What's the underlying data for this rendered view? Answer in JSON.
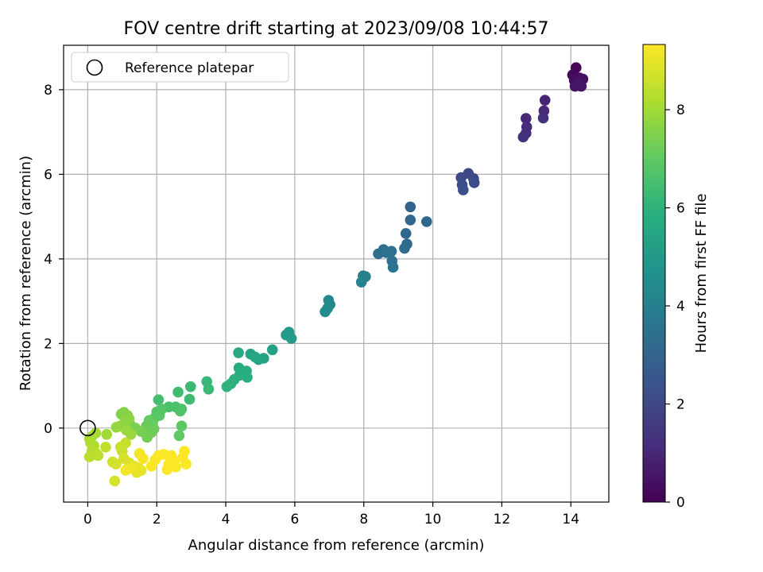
{
  "chart_data": {
    "type": "scatter",
    "title": "FOV centre drift starting at 2023/09/08 10:44:57",
    "xlabel": "Angular distance from reference (arcmin)",
    "ylabel": "Rotation from reference (arcmin)",
    "xlim": [
      -0.7,
      15.1
    ],
    "ylim": [
      -1.75,
      9.05
    ],
    "xticks": [
      0,
      2,
      4,
      6,
      8,
      10,
      12,
      14
    ],
    "yticks": [
      0,
      2,
      4,
      6,
      8
    ],
    "grid": true,
    "legend": {
      "placement": "upper-left",
      "entries": [
        "Reference platepar"
      ]
    },
    "colorbar": {
      "label": "Hours from first FF file",
      "range": [
        0,
        9.33
      ],
      "ticks": [
        0,
        2,
        4,
        6,
        8
      ],
      "colormap": "viridis"
    },
    "reference": {
      "x": 0,
      "y": 0,
      "label": "Reference platepar"
    },
    "points": [
      [
        14.15,
        8.52,
        0.1
      ],
      [
        14.05,
        8.35,
        0.2
      ],
      [
        14.25,
        8.28,
        0.3
      ],
      [
        14.1,
        8.22,
        0.35
      ],
      [
        14.35,
        8.25,
        0.4
      ],
      [
        14.12,
        8.08,
        0.45
      ],
      [
        14.3,
        8.08,
        0.5
      ],
      [
        14.2,
        8.15,
        0.55
      ],
      [
        13.25,
        7.75,
        1.0
      ],
      [
        12.7,
        7.32,
        1.05
      ],
      [
        13.22,
        7.5,
        1.1
      ],
      [
        12.72,
        7.12,
        1.15
      ],
      [
        12.7,
        6.97,
        1.2
      ],
      [
        13.2,
        7.33,
        1.25
      ],
      [
        12.62,
        6.88,
        1.3
      ],
      [
        11.03,
        6.02,
        2.0
      ],
      [
        10.82,
        5.92,
        2.05
      ],
      [
        11.18,
        5.9,
        2.1
      ],
      [
        11.2,
        5.8,
        2.15
      ],
      [
        10.85,
        5.75,
        2.2
      ],
      [
        10.88,
        5.63,
        2.25
      ],
      [
        9.35,
        5.23,
        3.0
      ],
      [
        9.35,
        4.92,
        3.05
      ],
      [
        9.82,
        4.88,
        3.1
      ],
      [
        9.22,
        4.6,
        3.15
      ],
      [
        9.25,
        4.35,
        3.2
      ],
      [
        9.18,
        4.25,
        3.25
      ],
      [
        8.57,
        4.22,
        3.3
      ],
      [
        8.42,
        4.12,
        3.35
      ],
      [
        8.8,
        4.18,
        3.4
      ],
      [
        8.65,
        4.15,
        3.45
      ],
      [
        8.82,
        3.95,
        3.5
      ],
      [
        8.85,
        3.8,
        3.55
      ],
      [
        7.98,
        3.6,
        4.0
      ],
      [
        8.05,
        3.58,
        4.05
      ],
      [
        7.93,
        3.45,
        4.1
      ],
      [
        6.98,
        3.02,
        4.3
      ],
      [
        7.02,
        2.92,
        4.35
      ],
      [
        6.95,
        2.83,
        4.4
      ],
      [
        6.88,
        2.75,
        4.45
      ],
      [
        5.83,
        2.27,
        5.0
      ],
      [
        5.75,
        2.2,
        5.05
      ],
      [
        5.9,
        2.12,
        5.1
      ],
      [
        5.35,
        1.85,
        5.3
      ],
      [
        5.1,
        1.65,
        5.35
      ],
      [
        4.95,
        1.62,
        5.4
      ],
      [
        4.72,
        1.75,
        5.45
      ],
      [
        4.85,
        1.68,
        5.5
      ],
      [
        4.37,
        1.78,
        5.6
      ],
      [
        4.38,
        1.42,
        5.7
      ],
      [
        4.6,
        1.35,
        5.75
      ],
      [
        4.4,
        1.25,
        5.8
      ],
      [
        4.62,
        1.2,
        5.85
      ],
      [
        4.25,
        1.15,
        5.9
      ],
      [
        4.15,
        1.05,
        5.95
      ],
      [
        4.03,
        0.98,
        6.0
      ],
      [
        3.45,
        1.1,
        6.2
      ],
      [
        3.5,
        0.92,
        6.25
      ],
      [
        2.98,
        0.98,
        6.3
      ],
      [
        2.95,
        0.68,
        6.35
      ],
      [
        2.62,
        0.85,
        6.4
      ],
      [
        2.05,
        0.67,
        6.5
      ],
      [
        2.35,
        0.5,
        6.55
      ],
      [
        2.55,
        0.5,
        6.6
      ],
      [
        2.72,
        0.45,
        6.65
      ],
      [
        2.68,
        0.4,
        6.7
      ],
      [
        2.15,
        0.45,
        6.75
      ],
      [
        2.0,
        0.38,
        6.8
      ],
      [
        2.08,
        0.3,
        6.85
      ],
      [
        1.95,
        0.25,
        6.9
      ],
      [
        2.72,
        0.05,
        6.95
      ],
      [
        2.65,
        -0.18,
        7.0
      ],
      [
        1.78,
        0.18,
        7.05
      ],
      [
        1.88,
        0.12,
        7.1
      ],
      [
        1.7,
        0.05,
        7.15
      ],
      [
        1.92,
        -0.02,
        7.2
      ],
      [
        1.85,
        -0.1,
        7.25
      ],
      [
        1.72,
        -0.22,
        7.3
      ],
      [
        1.55,
        -0.08,
        7.35
      ],
      [
        1.38,
        0.0,
        7.4
      ],
      [
        1.22,
        0.1,
        7.45
      ],
      [
        0.97,
        0.33,
        7.5
      ],
      [
        1.05,
        0.37,
        7.55
      ],
      [
        1.15,
        0.3,
        7.6
      ],
      [
        1.2,
        0.22,
        7.65
      ],
      [
        1.08,
        0.15,
        7.7
      ],
      [
        0.95,
        0.05,
        7.75
      ],
      [
        0.83,
        0.02,
        7.8
      ],
      [
        1.12,
        -0.05,
        7.85
      ],
      [
        1.25,
        -0.15,
        7.9
      ],
      [
        0.55,
        -0.15,
        7.95
      ],
      [
        0.23,
        -0.12,
        8.0
      ],
      [
        0.12,
        -0.2,
        8.05
      ],
      [
        0.05,
        -0.25,
        8.1
      ],
      [
        0.08,
        -0.35,
        8.15
      ],
      [
        0.18,
        -0.42,
        8.2
      ],
      [
        0.12,
        -0.55,
        8.25
      ],
      [
        0.25,
        -0.6,
        8.3
      ],
      [
        0.05,
        -0.68,
        8.35
      ],
      [
        0.3,
        -0.65,
        8.4
      ],
      [
        0.52,
        -0.45,
        8.45
      ],
      [
        0.95,
        -0.45,
        8.5
      ],
      [
        1.1,
        -0.35,
        8.55
      ],
      [
        1.0,
        -0.55,
        8.6
      ],
      [
        0.72,
        -0.8,
        8.65
      ],
      [
        0.82,
        -0.85,
        8.7
      ],
      [
        0.78,
        -1.25,
        8.75
      ],
      [
        1.05,
        -0.72,
        8.8
      ],
      [
        1.2,
        -0.82,
        8.85
      ],
      [
        1.35,
        -0.9,
        8.9
      ],
      [
        1.48,
        -0.95,
        8.95
      ],
      [
        1.42,
        -1.05,
        9.0
      ],
      [
        1.55,
        -1.0,
        9.05
      ],
      [
        1.25,
        -0.95,
        9.1
      ],
      [
        1.1,
        -1.0,
        9.15
      ],
      [
        1.5,
        -0.6,
        9.2
      ],
      [
        1.6,
        -0.72,
        9.25
      ],
      [
        1.95,
        -0.75,
        9.25
      ],
      [
        1.85,
        -0.9,
        9.28
      ],
      [
        2.05,
        -0.65,
        9.3
      ],
      [
        2.2,
        -0.62,
        9.3
      ],
      [
        2.42,
        -0.65,
        9.3
      ],
      [
        2.5,
        -0.78,
        9.3
      ],
      [
        2.35,
        -0.85,
        9.3
      ],
      [
        2.3,
        -0.98,
        9.3
      ],
      [
        2.55,
        -0.92,
        9.3
      ],
      [
        2.8,
        -0.55,
        9.3
      ],
      [
        2.75,
        -0.7,
        9.3
      ],
      [
        2.85,
        -0.85,
        9.3
      ]
    ]
  }
}
